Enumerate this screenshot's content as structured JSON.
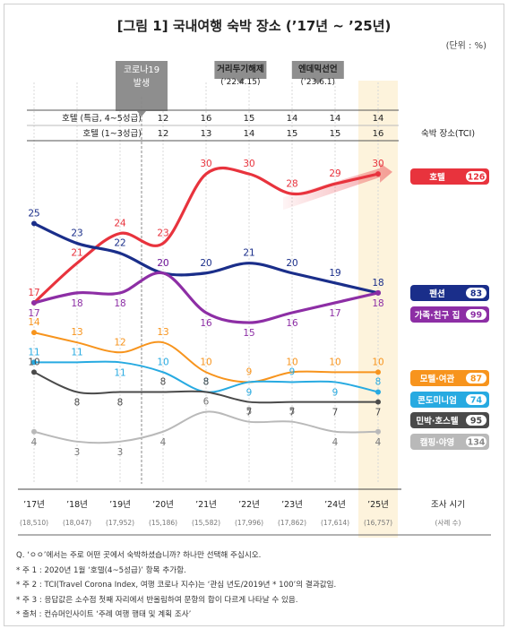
{
  "title": "[그림 1] 국내여행 숙박 장소 (’17년 ~ ’25년)",
  "unit": "(단위 : %)",
  "events": [
    {
      "label": "코로나19",
      "label2": "발생"
    },
    {
      "label": "거리두기해제",
      "label2": "(’22.4.15)"
    },
    {
      "label": "엔데믹선언",
      "label2": "(’23.6.1)"
    }
  ],
  "hotel_rows": [
    {
      "label": "호텔 (특급, 4~5성급)",
      "values": [
        "12",
        "16",
        "15",
        "14",
        "14",
        "14"
      ]
    },
    {
      "label": "호텔 (1~3성급)",
      "values": [
        "12",
        "13",
        "14",
        "15",
        "15",
        "16"
      ]
    }
  ],
  "tci_header": "숙박 장소(TCI)",
  "survey_label": "조사 시기",
  "sample_label": "(사례 수)",
  "colors": {
    "hotel": "#e8333d",
    "pension": "#1a2e8a",
    "family": "#8d2ea5",
    "motel": "#f7941d",
    "condo": "#27aae1",
    "minbak": "#4a4a4a",
    "camping": "#b9b9b9",
    "highlight": "#fdf3dc"
  },
  "chart_data": {
    "type": "line",
    "x": [
      "’17년",
      "’18년",
      "’19년",
      "’20년",
      "’21년",
      "’22년",
      "’23년",
      "’24년",
      "’25년"
    ],
    "sample_sizes": [
      "(18,510)",
      "(18,047)",
      "(17,952)",
      "(15,186)",
      "(15,582)",
      "(17,996)",
      "(17,862)",
      "(17,614)",
      "(16,757)"
    ],
    "ylim": [
      0,
      32
    ],
    "series": [
      {
        "name": "호텔",
        "tci": "126",
        "color": "#e8333d",
        "values": [
          17,
          21,
          24,
          23,
          30,
          30,
          28,
          29,
          30
        ]
      },
      {
        "name": "펜션",
        "tci": "83",
        "color": "#1a2e8a",
        "values": [
          25,
          23,
          22,
          20,
          20,
          21,
          20,
          19,
          18
        ]
      },
      {
        "name": "가족·친구 집",
        "tci": "99",
        "color": "#8d2ea5",
        "values": [
          17,
          18,
          18,
          20,
          16,
          15,
          16,
          17,
          18
        ]
      },
      {
        "name": "모텔·여관",
        "tci": "87",
        "color": "#f7941d",
        "values": [
          14,
          13,
          12,
          13,
          10,
          9,
          10,
          10,
          10
        ]
      },
      {
        "name": "콘도미니엄",
        "tci": "74",
        "color": "#27aae1",
        "values": [
          11,
          11,
          11,
          10,
          8,
          9,
          9,
          9,
          8
        ]
      },
      {
        "name": "민박·호스텔",
        "tci": "95",
        "color": "#4a4a4a",
        "values": [
          10,
          8,
          8,
          8,
          8,
          7,
          7,
          7,
          7
        ]
      },
      {
        "name": "캠핑·야영",
        "tci": "134",
        "color": "#b9b9b9",
        "values": [
          4,
          3,
          3,
          4,
          6,
          5,
          5,
          4,
          4
        ]
      }
    ]
  },
  "notes": [
    "Q. ‘ㅇㅇ’에서는 주로 어떤 곳에서 숙박하셨습니까? 하나만 선택해 주십시오.",
    "* 주 1 : 2020년 1월 ‘호텔(4~5성급)’ 항목 추가함.",
    "* 주 2 : TCI(Travel Corona Index, 여행 코로나 지수)는 ‘관심 년도/2019년 * 100’의 결과값임.",
    "* 주 3 : 응답값은 소수점 첫째 자리에서 반올림하여 문항의 합이 다르게 나타날 수 있음.",
    "* 출처 : 컨슈머인사이트 ‘주례 여행 행태 및 계획 조사’"
  ]
}
